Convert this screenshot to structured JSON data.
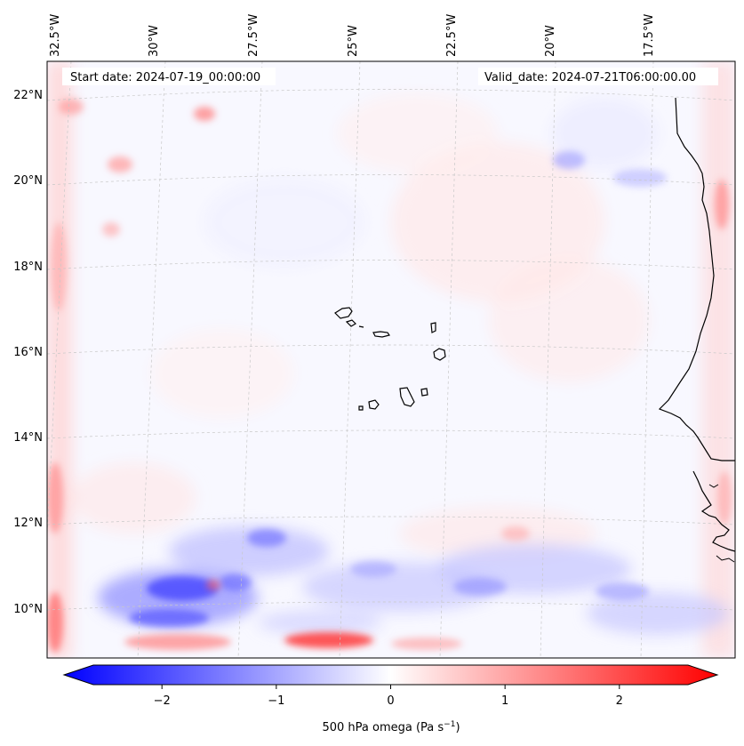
{
  "map": {
    "start_label": "Start date: 2024-07-19_00:00:00",
    "valid_label": "Valid_date: 2024-07-21T06:00:00.00",
    "lon_labels": [
      "32.5°W",
      "30°W",
      "27.5°W",
      "25°W",
      "22.5°W",
      "20°W",
      "17.5°W"
    ],
    "lat_labels": [
      "22°N",
      "20°N",
      "18°N",
      "16°N",
      "14°N",
      "12°N",
      "10°N"
    ],
    "colorbar": {
      "ticks": [
        "−2",
        "−1",
        "0",
        "1",
        "2"
      ],
      "tick_values": [
        -2,
        -1,
        0,
        1,
        2
      ],
      "vmin": -2.6,
      "vmax": 2.6,
      "label_main": "500 hPa omega (Pa s",
      "label_sup": "−1",
      "label_end": ")"
    },
    "colors": {
      "negative": "#0000ff",
      "positive": "#ff0000",
      "coast": "#000000"
    }
  }
}
